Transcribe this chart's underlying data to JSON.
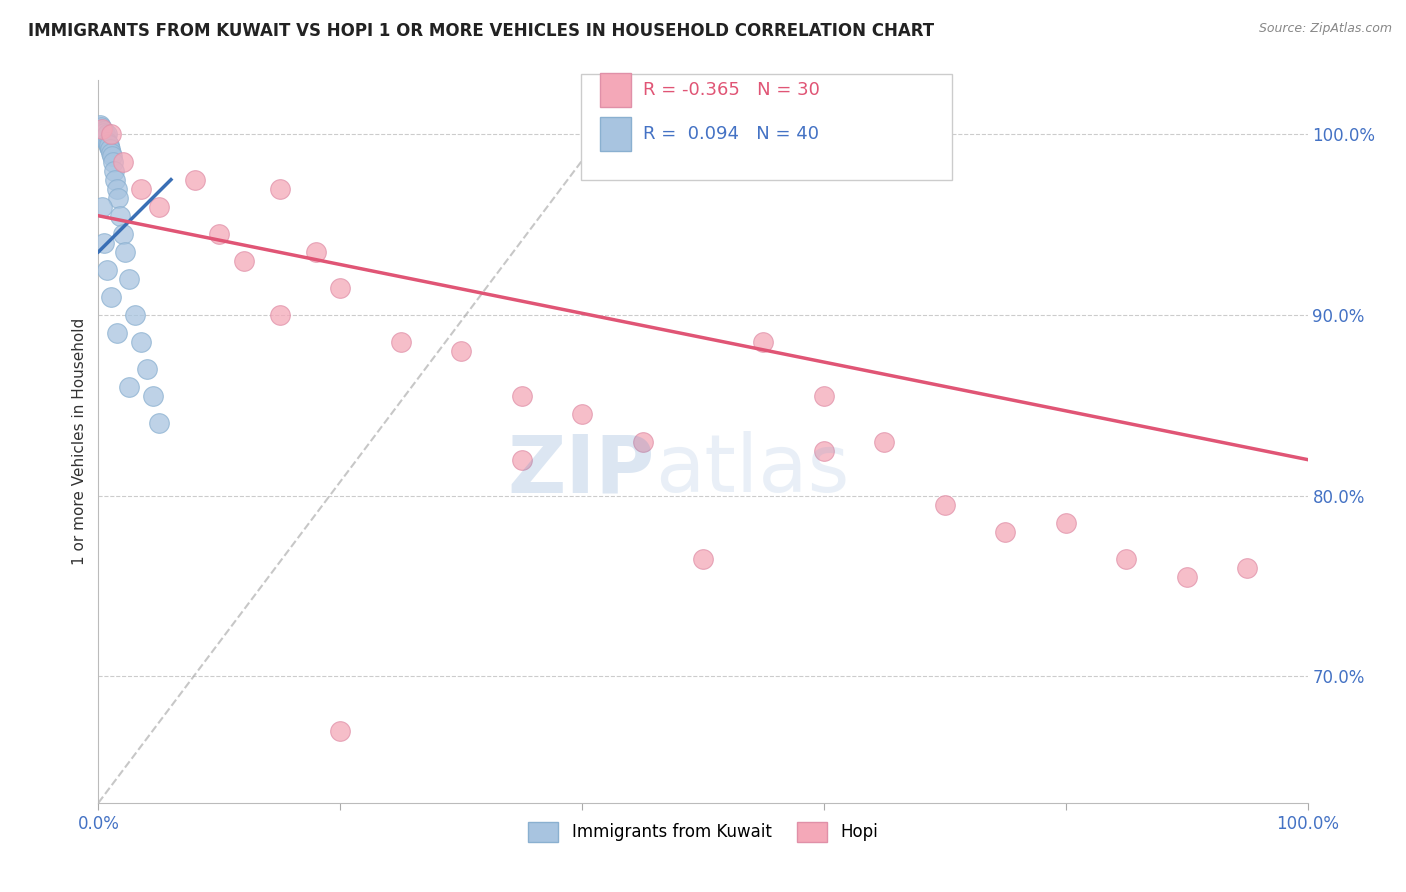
{
  "title": "IMMIGRANTS FROM KUWAIT VS HOPI 1 OR MORE VEHICLES IN HOUSEHOLD CORRELATION CHART",
  "source": "Source: ZipAtlas.com",
  "ylabel": "1 or more Vehicles in Household",
  "x_min": 0.0,
  "x_max": 100.0,
  "y_min": 63.0,
  "y_max": 103.0,
  "x_ticks": [
    0.0,
    20.0,
    40.0,
    60.0,
    80.0,
    100.0
  ],
  "x_tick_labels": [
    "0.0%",
    "",
    "",
    "",
    "",
    "100.0%"
  ],
  "y_ticks": [
    70.0,
    80.0,
    90.0,
    100.0
  ],
  "y_tick_labels": [
    "70.0%",
    "80.0%",
    "90.0%",
    "100.0%"
  ],
  "legend_blue_label": "Immigrants from Kuwait",
  "legend_pink_label": "Hopi",
  "r_blue": 0.094,
  "n_blue": 40,
  "r_pink": -0.365,
  "n_pink": 30,
  "blue_color": "#a8c4e0",
  "pink_color": "#f4a8b8",
  "blue_line_color": "#3a6fb5",
  "pink_line_color": "#e05575",
  "watermark_zip": "ZIP",
  "watermark_atlas": "atlas",
  "blue_points_x": [
    0.1,
    0.15,
    0.2,
    0.25,
    0.3,
    0.35,
    0.4,
    0.45,
    0.5,
    0.55,
    0.6,
    0.65,
    0.7,
    0.75,
    0.8,
    0.85,
    0.9,
    0.95,
    1.0,
    1.1,
    1.2,
    1.3,
    1.4,
    1.5,
    1.6,
    1.8,
    2.0,
    2.2,
    2.5,
    3.0,
    3.5,
    4.0,
    4.5,
    5.0,
    0.3,
    0.5,
    0.7,
    1.0,
    1.5,
    2.5
  ],
  "blue_points_y": [
    100.5,
    100.3,
    100.4,
    100.2,
    100.1,
    99.9,
    100.0,
    100.2,
    100.1,
    99.8,
    99.7,
    99.9,
    100.0,
    99.6,
    99.5,
    99.3,
    99.4,
    99.2,
    99.0,
    98.8,
    98.5,
    98.0,
    97.5,
    97.0,
    96.5,
    95.5,
    94.5,
    93.5,
    92.0,
    90.0,
    88.5,
    87.0,
    85.5,
    84.0,
    96.0,
    94.0,
    92.5,
    91.0,
    89.0,
    86.0
  ],
  "pink_points_x": [
    0.3,
    1.0,
    2.0,
    3.5,
    5.0,
    8.0,
    10.0,
    12.0,
    15.0,
    18.0,
    20.0,
    25.0,
    30.0,
    35.0,
    40.0,
    45.0,
    50.0,
    55.0,
    60.0,
    65.0,
    70.0,
    75.0,
    80.0,
    85.0,
    90.0,
    95.0,
    15.0,
    35.0,
    60.0,
    20.0
  ],
  "pink_points_y": [
    100.3,
    100.0,
    98.5,
    97.0,
    96.0,
    97.5,
    94.5,
    93.0,
    97.0,
    93.5,
    91.5,
    88.5,
    88.0,
    85.5,
    84.5,
    83.0,
    76.5,
    88.5,
    85.5,
    83.0,
    79.5,
    78.0,
    78.5,
    76.5,
    75.5,
    76.0,
    90.0,
    82.0,
    82.5,
    67.0
  ],
  "blue_line_x0": 0.0,
  "blue_line_x1": 6.0,
  "blue_line_y0": 93.5,
  "blue_line_y1": 97.5,
  "pink_line_x0": 0.0,
  "pink_line_x1": 100.0,
  "pink_line_y0": 95.5,
  "pink_line_y1": 82.0,
  "dash_line_x0": 0.0,
  "dash_line_x1": 45.0,
  "dash_line_y0": 63.0,
  "dash_line_y1": 103.0
}
